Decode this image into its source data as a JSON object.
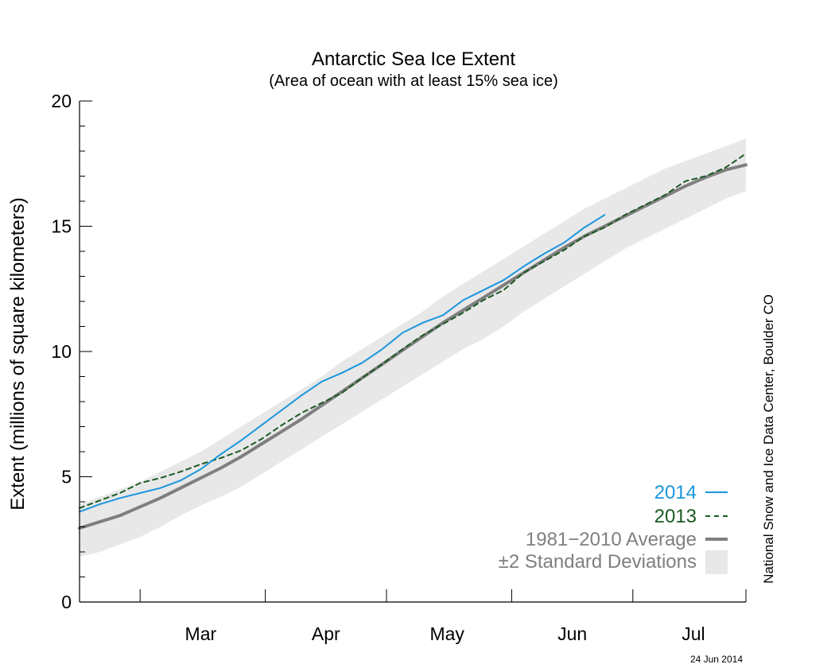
{
  "chart_data": {
    "type": "line",
    "title": "Antarctic Sea Ice Extent",
    "subtitle": "(Area of ocean with at least 15% sea ice)",
    "ylabel": "Extent (millions of square kilometers)",
    "xlabel": "",
    "ylim": [
      0,
      20
    ],
    "yticks": [
      "0",
      "5",
      "10",
      "15",
      "20"
    ],
    "x_month_labels": [
      "Mar",
      "Apr",
      "May",
      "Jun",
      "Jul"
    ],
    "x_unit": "day of year",
    "xlim": [
      45,
      210
    ],
    "x_month_starts": [
      60,
      91,
      121,
      152,
      182
    ],
    "x_month_label_positions": [
      75,
      106,
      136,
      167,
      197
    ],
    "grid": false,
    "legend_position": "bottom-right",
    "credit": "National Snow and Ice Data Center, Boulder CO",
    "date_stamp": "24 Jun 2014",
    "colors": {
      "2014": "#1a96de",
      "2013": "#1b5a23",
      "average": "#7f7f7f",
      "stddev": "#e8e8e8"
    },
    "series": [
      {
        "name": "2014",
        "style": "solid",
        "x": [
          45,
          50,
          55,
          60,
          65,
          70,
          75,
          80,
          85,
          90,
          95,
          100,
          105,
          110,
          115,
          120,
          125,
          130,
          135,
          140,
          145,
          150,
          155,
          160,
          165,
          170,
          175
        ],
        "values": [
          3.6,
          3.9,
          4.15,
          4.35,
          4.55,
          4.85,
          5.3,
          5.9,
          6.45,
          7.05,
          7.65,
          8.25,
          8.8,
          9.15,
          9.55,
          10.1,
          10.75,
          11.15,
          11.45,
          12.05,
          12.45,
          12.85,
          13.4,
          13.9,
          14.35,
          14.95,
          15.45
        ]
      },
      {
        "name": "2013",
        "style": "dashed",
        "x": [
          45,
          50,
          55,
          60,
          65,
          70,
          75,
          80,
          85,
          90,
          95,
          100,
          105,
          110,
          115,
          120,
          125,
          130,
          135,
          140,
          145,
          150,
          155,
          160,
          165,
          170,
          175,
          180,
          185,
          190,
          195,
          200,
          205,
          210
        ],
        "values": [
          3.75,
          4.05,
          4.35,
          4.75,
          4.95,
          5.2,
          5.5,
          5.75,
          6.05,
          6.5,
          7.05,
          7.55,
          7.95,
          8.35,
          8.95,
          9.5,
          10.1,
          10.65,
          11.1,
          11.55,
          12.05,
          12.45,
          13.15,
          13.6,
          14.05,
          14.6,
          14.95,
          15.45,
          15.85,
          16.25,
          16.8,
          17.0,
          17.35,
          17.9
        ]
      },
      {
        "name": "1981-2010 Average",
        "style": "solid-thick",
        "x": [
          45,
          50,
          55,
          60,
          65,
          70,
          75,
          80,
          85,
          90,
          95,
          100,
          105,
          110,
          115,
          120,
          125,
          130,
          135,
          140,
          145,
          150,
          155,
          160,
          165,
          170,
          175,
          180,
          185,
          190,
          195,
          200,
          205,
          210
        ],
        "values": [
          2.95,
          3.2,
          3.45,
          3.8,
          4.15,
          4.55,
          4.95,
          5.35,
          5.8,
          6.3,
          6.8,
          7.3,
          7.85,
          8.4,
          8.95,
          9.5,
          10.05,
          10.6,
          11.15,
          11.65,
          12.15,
          12.65,
          13.15,
          13.65,
          14.15,
          14.6,
          15.0,
          15.4,
          15.8,
          16.2,
          16.6,
          16.95,
          17.25,
          17.45
        ]
      }
    ],
    "stddev_band": {
      "name": "±2 Standard Deviations",
      "x": [
        45,
        50,
        55,
        60,
        65,
        70,
        75,
        80,
        85,
        90,
        95,
        100,
        105,
        110,
        115,
        120,
        125,
        130,
        135,
        140,
        145,
        150,
        155,
        160,
        165,
        170,
        175,
        180,
        185,
        190,
        195,
        200,
        205,
        210
      ],
      "lower": [
        1.8,
        2.0,
        2.3,
        2.6,
        3.0,
        3.45,
        3.85,
        4.2,
        4.6,
        5.1,
        5.6,
        6.1,
        6.6,
        7.1,
        7.6,
        8.1,
        8.6,
        9.1,
        9.6,
        10.1,
        10.5,
        11.0,
        11.6,
        12.1,
        12.6,
        13.1,
        13.6,
        14.1,
        14.5,
        14.9,
        15.3,
        15.7,
        16.1,
        16.4
      ],
      "upper": [
        3.9,
        4.2,
        4.5,
        4.8,
        5.2,
        5.6,
        6.0,
        6.5,
        7.0,
        7.5,
        8.0,
        8.5,
        9.0,
        9.6,
        10.1,
        10.6,
        11.1,
        11.6,
        12.2,
        12.7,
        13.2,
        13.7,
        14.2,
        14.7,
        15.2,
        15.7,
        16.1,
        16.5,
        16.9,
        17.3,
        17.6,
        17.9,
        18.2,
        18.5
      ]
    },
    "legend": [
      {
        "label": "2014",
        "key": "2014"
      },
      {
        "label": "2013",
        "key": "2013"
      },
      {
        "label": "1981−2010 Average",
        "key": "average"
      },
      {
        "label": "±2 Standard Deviations",
        "key": "stddev"
      }
    ]
  }
}
